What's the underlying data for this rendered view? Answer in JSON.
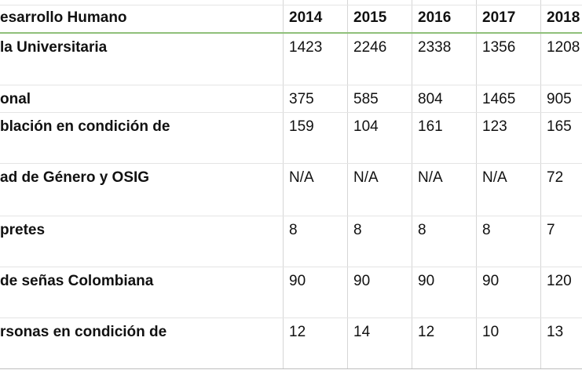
{
  "table": {
    "header": [
      "esarrollo Humano",
      "2014",
      "2015",
      "2016",
      "2017",
      "2018"
    ],
    "rows": [
      [
        "la Universitaria",
        "1423",
        "2246",
        "2338",
        "1356",
        "1208"
      ],
      [
        "onal",
        "375",
        "585",
        "804",
        "1465",
        "905"
      ],
      [
        "blación en condición de",
        "159",
        "104",
        "161",
        "123",
        "165"
      ],
      [
        "ad de Género y OSIG",
        "N/A",
        "N/A",
        "N/A",
        "N/A",
        "72"
      ],
      [
        "pretes",
        "8",
        "8",
        "8",
        "8",
        "7"
      ],
      [
        "de señas Colombiana",
        "90",
        "90",
        "90",
        "90",
        "120"
      ],
      [
        "rsonas en condición de",
        "12",
        "14",
        "12",
        "10",
        "13"
      ]
    ]
  }
}
